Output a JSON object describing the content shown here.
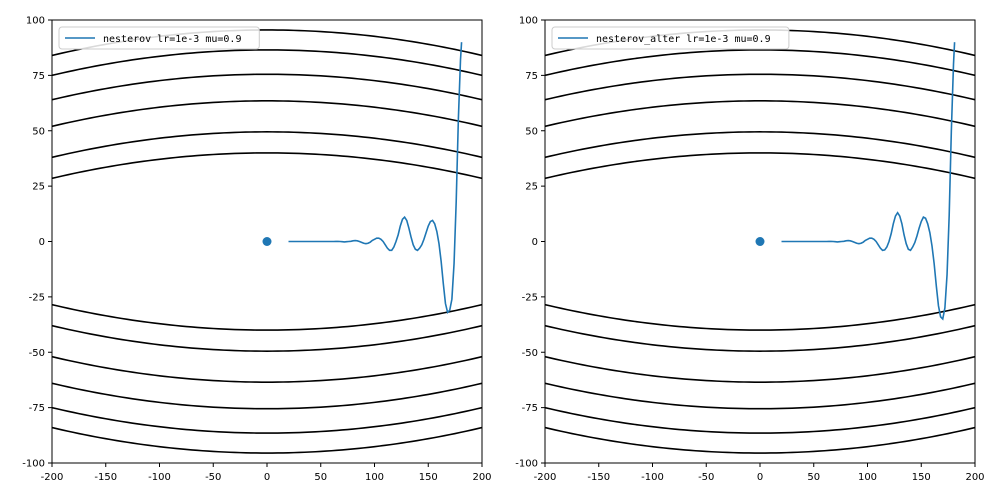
{
  "chart_data": [
    {
      "type": "line",
      "series": [
        {
          "name": "nesterov lr=1e-3 mu=0.9",
          "color": "#1f77b4",
          "x": [
            181,
            180,
            178,
            176,
            174,
            172,
            170,
            168,
            166,
            164,
            162,
            160,
            158,
            156,
            154,
            152,
            150,
            148,
            146,
            144,
            142,
            140,
            138,
            136,
            134,
            132,
            130,
            128,
            126,
            124,
            122,
            120,
            118,
            116,
            114,
            112,
            110,
            108,
            106,
            104,
            102,
            100,
            98,
            96,
            94,
            92,
            90,
            88,
            86,
            84,
            82,
            80,
            78,
            76,
            74,
            72,
            70,
            68,
            66,
            64,
            62,
            60,
            58,
            56,
            54,
            52,
            50,
            48,
            46,
            44,
            42,
            40,
            38,
            36,
            34,
            32,
            30,
            28,
            26,
            24,
            22,
            20
          ],
          "y": [
            90,
            82,
            55,
            18,
            -10,
            -26,
            -31,
            -32,
            -28,
            -19,
            -9,
            -1,
            4.5,
            8,
            9.5,
            9,
            7,
            4,
            1,
            -1.5,
            -3,
            -4,
            -3.5,
            -1.5,
            2,
            6,
            9.5,
            11,
            10,
            7,
            3,
            0,
            -2.5,
            -4,
            -4,
            -3,
            -1.5,
            0,
            1,
            1.5,
            1.5,
            1,
            0.5,
            -0.3,
            -0.8,
            -1,
            -0.8,
            -0.4,
            0,
            0.3,
            0.4,
            0.3,
            0.1,
            0,
            -0.1,
            -0.2,
            -0.1,
            0,
            0.05,
            0.05,
            0,
            0,
            0,
            0,
            0,
            0,
            0,
            0,
            0,
            0,
            0,
            0,
            0,
            0,
            0,
            0,
            0,
            0,
            0,
            0,
            0,
            0
          ]
        }
      ],
      "marker_point": {
        "x": 0,
        "y": 0
      },
      "xlim": [
        -200,
        200
      ],
      "ylim": [
        -100,
        100
      ],
      "xticks": [
        "-200",
        "-150",
        "-100",
        "-50",
        "0",
        "50",
        "100",
        "150",
        "200"
      ],
      "yticks": [
        "100",
        "75",
        "50",
        "25",
        "0",
        "-25",
        "-50",
        "-75",
        "-100"
      ],
      "contour_levels": [
        40,
        49.5,
        63.5,
        75.5,
        86.5,
        95.5
      ],
      "contour_curvature": 11.5,
      "legend_position": "upper-left",
      "grid": false
    },
    {
      "type": "line",
      "series": [
        {
          "name": "nesterov_alter lr=1e-3 mu=0.9",
          "color": "#1f77b4",
          "x": [
            181,
            180,
            178,
            176,
            174,
            172,
            170,
            168,
            166,
            164,
            162,
            160,
            158,
            156,
            154,
            152,
            150,
            148,
            146,
            144,
            142,
            140,
            138,
            136,
            134,
            132,
            130,
            128,
            126,
            124,
            122,
            120,
            118,
            116,
            114,
            112,
            110,
            108,
            106,
            104,
            102,
            100,
            98,
            96,
            94,
            92,
            90,
            88,
            86,
            84,
            82,
            80,
            78,
            76,
            74,
            72,
            70,
            68,
            66,
            64,
            62,
            60,
            58,
            56,
            54,
            52,
            50,
            48,
            46,
            44,
            42,
            40,
            38,
            36,
            34,
            32,
            30,
            28,
            26,
            24,
            22,
            20
          ],
          "y": [
            90,
            80,
            50,
            12,
            -15,
            -30,
            -35,
            -34,
            -29,
            -20,
            -10,
            -2,
            4,
            8,
            10.5,
            11,
            9,
            6,
            2.5,
            -0.5,
            -2.5,
            -4,
            -3.5,
            -1,
            3,
            8,
            11.5,
            13,
            11.5,
            8,
            3.5,
            0,
            -2.5,
            -3.8,
            -4,
            -3,
            -1.5,
            0,
            1,
            1.5,
            1.5,
            1,
            0.5,
            -0.3,
            -0.8,
            -1,
            -0.8,
            -0.4,
            0,
            0.3,
            0.4,
            0.3,
            0.1,
            0,
            -0.1,
            -0.2,
            -0.1,
            0,
            0.05,
            0.05,
            0,
            0,
            0,
            0,
            0,
            0,
            0,
            0,
            0,
            0,
            0,
            0,
            0,
            0,
            0,
            0,
            0,
            0,
            0,
            0,
            0,
            0
          ]
        }
      ],
      "marker_point": {
        "x": 0,
        "y": 0
      },
      "xlim": [
        -200,
        200
      ],
      "ylim": [
        -100,
        100
      ],
      "xticks": [
        "-200",
        "-150",
        "-100",
        "-50",
        "0",
        "50",
        "100",
        "150",
        "200"
      ],
      "yticks": [
        "100",
        "75",
        "50",
        "25",
        "0",
        "-25",
        "-50",
        "-75",
        "-100"
      ],
      "contour_levels": [
        40,
        49.5,
        63.5,
        75.5,
        86.5,
        95.5
      ],
      "contour_curvature": 11.5,
      "legend_position": "upper-left",
      "grid": false
    }
  ]
}
